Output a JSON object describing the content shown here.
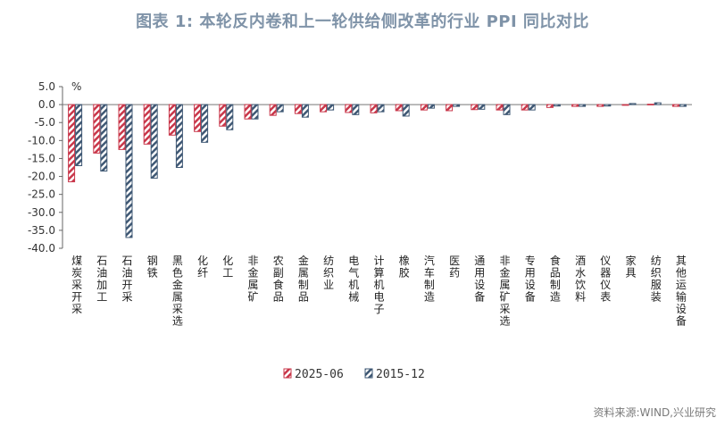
{
  "title": "图表 1:   本轮反内卷和上一轮供给侧改革的行业 PPI 同比对比",
  "source": "资料来源:WIND,兴业研究",
  "colors": {
    "series_2025": "#c9374a",
    "series_2015": "#3f5874",
    "title": "#7f93a8"
  },
  "chart_data": {
    "type": "bar",
    "ylabel": "%",
    "ylim": [
      -40,
      5
    ],
    "yticks": [
      5,
      0,
      -5,
      -10,
      -15,
      -20,
      -25,
      -30,
      -35,
      -40
    ],
    "ytick_labels": [
      "5.0",
      "0.0",
      "-5.0",
      "-10.0",
      "-15.0",
      "-20.0",
      "-25.0",
      "-30.0",
      "-35.0",
      "-40.0"
    ],
    "legend_position": "bottom-center",
    "categories": [
      "煤炭采开采",
      "石油加工",
      "石油开采",
      "钢铁",
      "黑色金属采选",
      "化纤",
      "化工",
      "非金属矿",
      "农副食品",
      "金属制品",
      "纺织业",
      "电气机械",
      "计算机电子",
      "橡胶",
      "汽车制造",
      "医药",
      "通用设备",
      "非金属矿采选",
      "专用设备",
      "食品制造",
      "酒水饮料",
      "仪器仪表",
      "家具",
      "纺织服装",
      "其他运输设备"
    ],
    "series": [
      {
        "name": "2025-06",
        "values": [
          -21.5,
          -13.5,
          -12.5,
          -11.0,
          -8.5,
          -7.5,
          -6.0,
          -4.0,
          -3.0,
          -2.5,
          -2.0,
          -2.2,
          -2.3,
          -1.7,
          -1.5,
          -1.7,
          -1.4,
          -1.5,
          -1.5,
          -0.8,
          -0.5,
          -0.5,
          -0.2,
          0.1,
          -0.5
        ]
      },
      {
        "name": "2015-12",
        "values": [
          -17.0,
          -18.5,
          -37.0,
          -20.5,
          -17.5,
          -10.5,
          -7.0,
          -4.0,
          -2.0,
          -3.5,
          -1.5,
          -2.8,
          -2.0,
          -3.2,
          -1.0,
          -0.5,
          -1.3,
          -2.8,
          -1.5,
          -0.4,
          -0.5,
          -0.4,
          0.3,
          0.5,
          -0.5
        ]
      }
    ]
  }
}
